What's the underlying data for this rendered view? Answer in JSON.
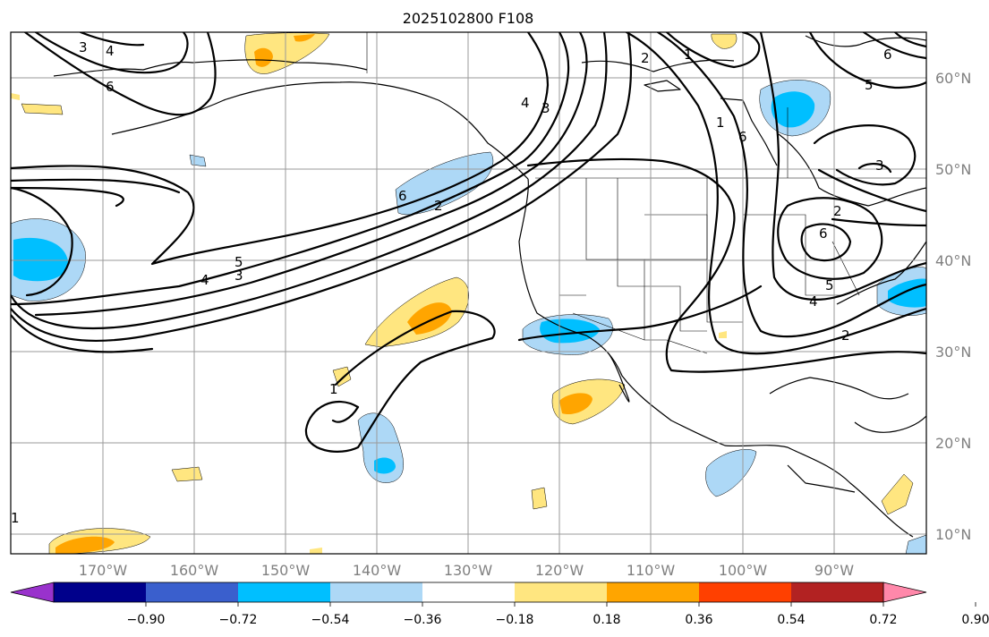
{
  "title": "2025102800 F108",
  "lon_labels": [
    "170°W",
    "160°W",
    "150°W",
    "140°W",
    "130°W",
    "120°W",
    "110°W",
    "100°W",
    "90°W"
  ],
  "lat_labels": [
    "60°N",
    "50°N",
    "40°N",
    "30°N",
    "20°N",
    "10°N"
  ],
  "colorbar": {
    "ticks": [
      "−0.90",
      "−0.72",
      "−0.54",
      "−0.36",
      "−0.18",
      "0.18",
      "0.36",
      "0.54",
      "0.72",
      "0.90"
    ],
    "colors": [
      "#9932cc",
      "#00008b",
      "#3a5fcd",
      "#00bfff",
      "#add8f6",
      "#ffffff",
      "#ffe680",
      "#ffa500",
      "#ff4000",
      "#b22222",
      "#ff88aa"
    ]
  },
  "contour_labels": [
    "6",
    "3",
    "4",
    "6",
    "1",
    "2",
    "2",
    "1",
    "6",
    "5",
    "6",
    "2",
    "5",
    "4",
    "3",
    "5",
    "2",
    "4",
    "3",
    "6",
    "3",
    "4",
    "1",
    "1"
  ],
  "legend_colors": {
    "neg_light": "#add8f6",
    "neg_mid": "#00bfff",
    "pos_light": "#ffe680",
    "pos_mid": "#ffa500"
  }
}
